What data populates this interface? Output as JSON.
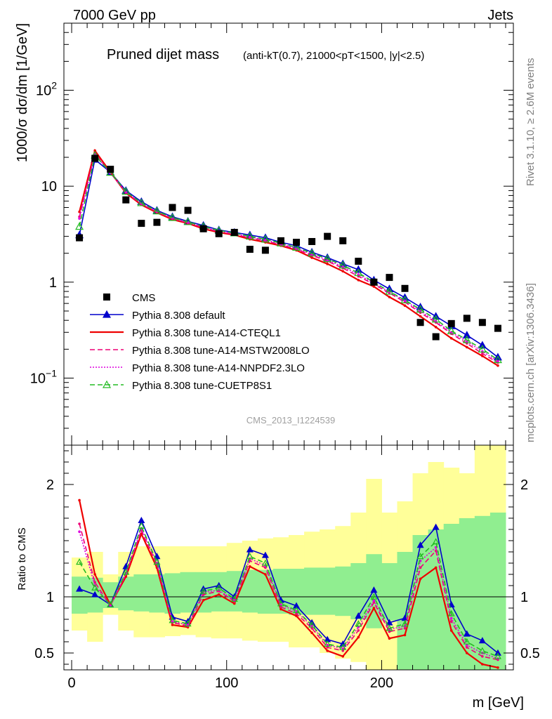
{
  "header": {
    "left": "7000 GeV pp",
    "right": "Jets"
  },
  "side": {
    "rivet": "Rivet 3.1.10, ≥ 2.6M events",
    "mcplots": "mcplots.cern.ch [arXiv:1306.3436]"
  },
  "watermark": "CMS_2013_I1224539",
  "chart_data": [
    {
      "type": "scatter",
      "title": "Pruned dijet mass",
      "subtitle": "(anti-kT(0.7), 21000<pT<1500, |y|<2.5)",
      "ylabel": "1000/σ dσ/dm [1/GeV]",
      "yscale": "log",
      "ylim": [
        0.02,
        500
      ],
      "xlim": [
        -5,
        285
      ],
      "legend_position": "bottom-left",
      "y_tick_labels": [
        "10^-1",
        "1",
        "10",
        "10^2"
      ],
      "x": [
        5,
        15,
        25,
        35,
        45,
        55,
        65,
        75,
        85,
        95,
        105,
        115,
        125,
        135,
        145,
        155,
        165,
        175,
        185,
        195,
        205,
        215,
        225,
        235,
        245,
        255,
        265,
        275
      ],
      "series": [
        {
          "name": "CMS",
          "color": "#000000",
          "style": "data",
          "values": [
            2.9,
            19.5,
            15.0,
            7.2,
            4.1,
            4.2,
            6.0,
            5.6,
            3.6,
            3.2,
            3.3,
            2.2,
            2.15,
            2.7,
            2.6,
            2.65,
            3.0,
            2.7,
            1.65,
            1.0,
            1.12,
            0.86,
            0.38,
            0.27,
            0.37,
            0.42,
            0.38,
            0.33
          ]
        },
        {
          "name": "Pythia 8.308 default",
          "color": "#0000cc",
          "style": "solid-filled-triangle",
          "values": [
            3.1,
            19.0,
            14.0,
            9.0,
            6.9,
            5.6,
            4.8,
            4.3,
            3.9,
            3.5,
            3.3,
            3.1,
            2.9,
            2.6,
            2.4,
            2.05,
            1.8,
            1.55,
            1.35,
            1.05,
            0.85,
            0.69,
            0.55,
            0.44,
            0.35,
            0.28,
            0.22,
            0.165
          ]
        },
        {
          "name": "Pythia 8.308 tune-A14-CTEQL1",
          "color": "#ee0000",
          "style": "solid",
          "values": [
            5.4,
            23.5,
            14.0,
            8.5,
            6.4,
            5.3,
            4.5,
            4.1,
            3.6,
            3.3,
            3.1,
            2.8,
            2.6,
            2.4,
            2.15,
            1.8,
            1.55,
            1.3,
            1.05,
            0.9,
            0.7,
            0.57,
            0.44,
            0.34,
            0.26,
            0.21,
            0.17,
            0.135
          ]
        },
        {
          "name": "Pythia 8.308 tune-A14-MSTW2008LO",
          "color": "#ee0077",
          "style": "dashed",
          "values": [
            4.8,
            22.0,
            13.8,
            8.6,
            6.5,
            5.4,
            4.6,
            4.15,
            3.7,
            3.35,
            3.15,
            2.9,
            2.7,
            2.45,
            2.2,
            1.9,
            1.65,
            1.4,
            1.15,
            0.95,
            0.77,
            0.62,
            0.48,
            0.38,
            0.29,
            0.23,
            0.18,
            0.145
          ]
        },
        {
          "name": "Pythia 8.308 tune-A14-NNPDF2.3LO",
          "color": "#dd00dd",
          "style": "dotted",
          "values": [
            4.6,
            21.5,
            13.7,
            8.7,
            6.6,
            5.45,
            4.65,
            4.2,
            3.75,
            3.4,
            3.2,
            2.95,
            2.75,
            2.5,
            2.25,
            1.95,
            1.7,
            1.45,
            1.2,
            0.97,
            0.79,
            0.64,
            0.5,
            0.39,
            0.3,
            0.24,
            0.19,
            0.15
          ]
        },
        {
          "name": "Pythia 8.308 tune-CUETP8S1",
          "color": "#22bb22",
          "style": "dashed-open-triangle",
          "values": [
            3.8,
            21.0,
            13.9,
            8.8,
            6.7,
            5.5,
            4.7,
            4.25,
            3.8,
            3.45,
            3.25,
            3.0,
            2.8,
            2.55,
            2.3,
            2.0,
            1.75,
            1.5,
            1.25,
            1.0,
            0.8,
            0.65,
            0.52,
            0.41,
            0.31,
            0.25,
            0.2,
            0.155
          ]
        }
      ]
    },
    {
      "type": "line",
      "ylabel": "Ratio to CMS",
      "xlabel": "m [GeV]",
      "ylim": [
        0.35,
        2.35
      ],
      "xlim": [
        -5,
        285
      ],
      "y_tick_labels": [
        "0.5",
        "1",
        "2"
      ],
      "x_tick_labels": [
        "0",
        "100",
        "200"
      ],
      "x_edges": [
        0,
        10,
        20,
        30,
        40,
        50,
        60,
        70,
        80,
        90,
        100,
        110,
        120,
        130,
        140,
        150,
        160,
        170,
        180,
        190,
        200,
        210,
        220,
        230,
        240,
        250,
        260,
        270,
        280
      ],
      "band_stat": {
        "color": "#90ee90",
        "lo": [
          0.85,
          0.86,
          0.9,
          0.88,
          0.87,
          0.86,
          0.85,
          0.86,
          0.86,
          0.87,
          0.87,
          0.86,
          0.85,
          0.85,
          0.84,
          0.84,
          0.84,
          0.83,
          0.8,
          0.72,
          0.79,
          0.35,
          0.35,
          0.35,
          0.35,
          0.35,
          0.35,
          0.35
        ],
        "hi": [
          1.18,
          1.17,
          1.13,
          1.18,
          1.2,
          1.2,
          1.21,
          1.22,
          1.22,
          1.22,
          1.23,
          1.24,
          1.24,
          1.25,
          1.25,
          1.26,
          1.26,
          1.27,
          1.3,
          1.38,
          1.3,
          1.4,
          1.55,
          1.6,
          1.65,
          1.7,
          1.72,
          1.75
        ]
      },
      "band_syst": {
        "color": "#ffff99",
        "lo": [
          0.7,
          0.6,
          0.84,
          0.7,
          0.64,
          0.64,
          0.65,
          0.66,
          0.64,
          0.63,
          0.63,
          0.61,
          0.6,
          0.6,
          0.55,
          0.55,
          0.5,
          0.45,
          0.42,
          0.35,
          0.35,
          0.35,
          0.35,
          0.35,
          0.35,
          0.35,
          0.35,
          0.35
        ],
        "hi": [
          1.35,
          1.4,
          1.2,
          1.4,
          1.45,
          1.45,
          1.45,
          1.45,
          1.45,
          1.45,
          1.48,
          1.5,
          1.52,
          1.53,
          1.55,
          1.58,
          1.6,
          1.63,
          1.75,
          2.05,
          1.75,
          1.85,
          2.1,
          2.2,
          2.15,
          2.1,
          2.35,
          2.35
        ]
      },
      "reference": 1.0,
      "x": [
        5,
        15,
        25,
        35,
        45,
        55,
        65,
        75,
        85,
        95,
        105,
        115,
        125,
        135,
        145,
        155,
        165,
        175,
        185,
        195,
        205,
        215,
        225,
        235,
        245,
        255,
        265,
        275
      ],
      "series": [
        {
          "name": "Pythia 8.308 default",
          "color": "#0000cc",
          "style": "solid-filled-triangle",
          "values": [
            1.07,
            1.02,
            0.93,
            1.27,
            1.68,
            1.36,
            0.82,
            0.78,
            1.07,
            1.1,
            1.0,
            1.42,
            1.37,
            0.97,
            0.92,
            0.77,
            0.62,
            0.58,
            0.83,
            1.06,
            0.77,
            0.81,
            1.46,
            1.62,
            0.93,
            0.67,
            0.61,
            0.5
          ]
        },
        {
          "name": "Pythia 8.308 tune-A14-CTEQL1",
          "color": "#ee0000",
          "style": "solid",
          "values": [
            1.86,
            1.2,
            0.93,
            1.18,
            1.56,
            1.26,
            0.75,
            0.73,
            0.97,
            1.02,
            0.94,
            1.27,
            1.2,
            0.89,
            0.83,
            0.68,
            0.52,
            0.47,
            0.64,
            0.9,
            0.63,
            0.66,
            1.16,
            1.26,
            0.7,
            0.5,
            0.4,
            0.37
          ]
        },
        {
          "name": "Pythia 8.308 tune-A14-MSTW2008LO",
          "color": "#ee0077",
          "style": "dashed",
          "values": [
            1.65,
            1.13,
            0.92,
            1.2,
            1.59,
            1.29,
            0.77,
            0.74,
            1.02,
            1.05,
            0.96,
            1.32,
            1.26,
            0.91,
            0.85,
            0.72,
            0.55,
            0.52,
            0.7,
            0.95,
            0.69,
            0.72,
            1.26,
            1.41,
            0.78,
            0.55,
            0.47,
            0.44
          ]
        },
        {
          "name": "Pythia 8.308 tune-A14-NNPDF2.3LO",
          "color": "#dd00dd",
          "style": "dotted",
          "values": [
            1.58,
            1.1,
            0.92,
            1.21,
            1.61,
            1.3,
            0.78,
            0.75,
            1.04,
            1.06,
            0.97,
            1.34,
            1.28,
            0.93,
            0.87,
            0.74,
            0.57,
            0.54,
            0.73,
            0.97,
            0.71,
            0.74,
            1.32,
            1.44,
            0.81,
            0.57,
            0.5,
            0.45
          ]
        },
        {
          "name": "Pythia 8.308 tune-CUETP8S1",
          "color": "#22bb22",
          "style": "dashed-open-triangle",
          "values": [
            1.31,
            1.08,
            0.93,
            1.22,
            1.63,
            1.31,
            0.79,
            0.76,
            1.05,
            1.08,
            0.98,
            1.36,
            1.3,
            0.94,
            0.88,
            0.75,
            0.58,
            0.55,
            0.76,
            1.0,
            0.72,
            0.76,
            1.36,
            1.49,
            0.85,
            0.6,
            0.52,
            0.47
          ]
        }
      ]
    }
  ]
}
